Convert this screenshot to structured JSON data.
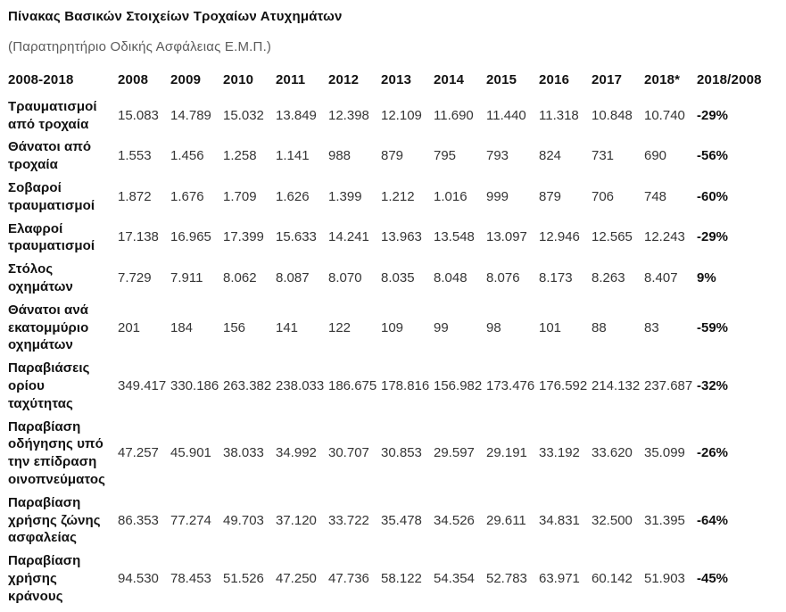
{
  "title": "Πίνακας Βασικών Στοιχείων Τροχαίων Ατυχημάτων",
  "subtitle": "(Παρατηρητήριο Οδικής Ασφάλειας Ε.Μ.Π.)",
  "chart_data": {
    "type": "table",
    "title": "Πίνακας Βασικών Στοιχείων Τροχαίων Ατυχημάτων",
    "source": "Παρατηρητήριο Οδικής Ασφάλειας Ε.Μ.Π.",
    "columns": [
      "2008-2018",
      "2008",
      "2009",
      "2010",
      "2011",
      "2012",
      "2013",
      "2014",
      "2015",
      "2016",
      "2017",
      "2018*",
      "2018/2008"
    ],
    "rows": [
      {
        "label": "Τραυματισμοί\nαπό τροχαία",
        "values": [
          15083,
          14789,
          15032,
          13849,
          12398,
          12109,
          11690,
          11440,
          11318,
          10848,
          10740
        ],
        "change": "-29%"
      },
      {
        "label": "Θάνατοι από\nτροχαία",
        "values": [
          1553,
          1456,
          1258,
          1141,
          988,
          879,
          795,
          793,
          824,
          731,
          690
        ],
        "change": "-56%"
      },
      {
        "label": "Σοβαροί\nτραυματισμοί",
        "values": [
          1872,
          1676,
          1709,
          1626,
          1399,
          1212,
          1016,
          999,
          879,
          706,
          748
        ],
        "change": "-60%"
      },
      {
        "label": "Ελαφροί\nτραυματισμοί",
        "values": [
          17138,
          16965,
          17399,
          15633,
          14241,
          13963,
          13548,
          13097,
          12946,
          12565,
          12243
        ],
        "change": "-29%"
      },
      {
        "label": "Στόλος\nοχημάτων",
        "values": [
          7729,
          7911,
          8062,
          8087,
          8070,
          8035,
          8048,
          8076,
          8173,
          8263,
          8407
        ],
        "change": "9%"
      },
      {
        "label": "Θάνατοι ανά\nεκατομμύριο\nοχημάτων",
        "values": [
          201,
          184,
          156,
          141,
          122,
          109,
          99,
          98,
          101,
          88,
          83
        ],
        "change": "-59%"
      },
      {
        "label": "Παραβιάσεις\nορίου\nταχύτητας",
        "values": [
          349417,
          330186,
          263382,
          238033,
          186675,
          178816,
          156982,
          173476,
          176592,
          214132,
          237687
        ],
        "change": "-32%"
      },
      {
        "label": "Παραβίαση\nοδήγησης υπό\nτην επίδραση\nοινοπνεύματος",
        "values": [
          47257,
          45901,
          38033,
          34992,
          30707,
          30853,
          29597,
          29191,
          33192,
          33620,
          35099
        ],
        "change": "-26%"
      },
      {
        "label": "Παραβίαση\nχρήσης ζώνης\nασφαλείας",
        "values": [
          86353,
          77274,
          49703,
          37120,
          33722,
          35478,
          34526,
          29611,
          34831,
          32500,
          31395
        ],
        "change": "-64%"
      },
      {
        "label": "Παραβίαση\nχρήσης\nκράνους",
        "values": [
          94530,
          78453,
          51526,
          47250,
          47736,
          58122,
          54354,
          52783,
          63971,
          60142,
          51903
        ],
        "change": "-45%"
      }
    ]
  }
}
